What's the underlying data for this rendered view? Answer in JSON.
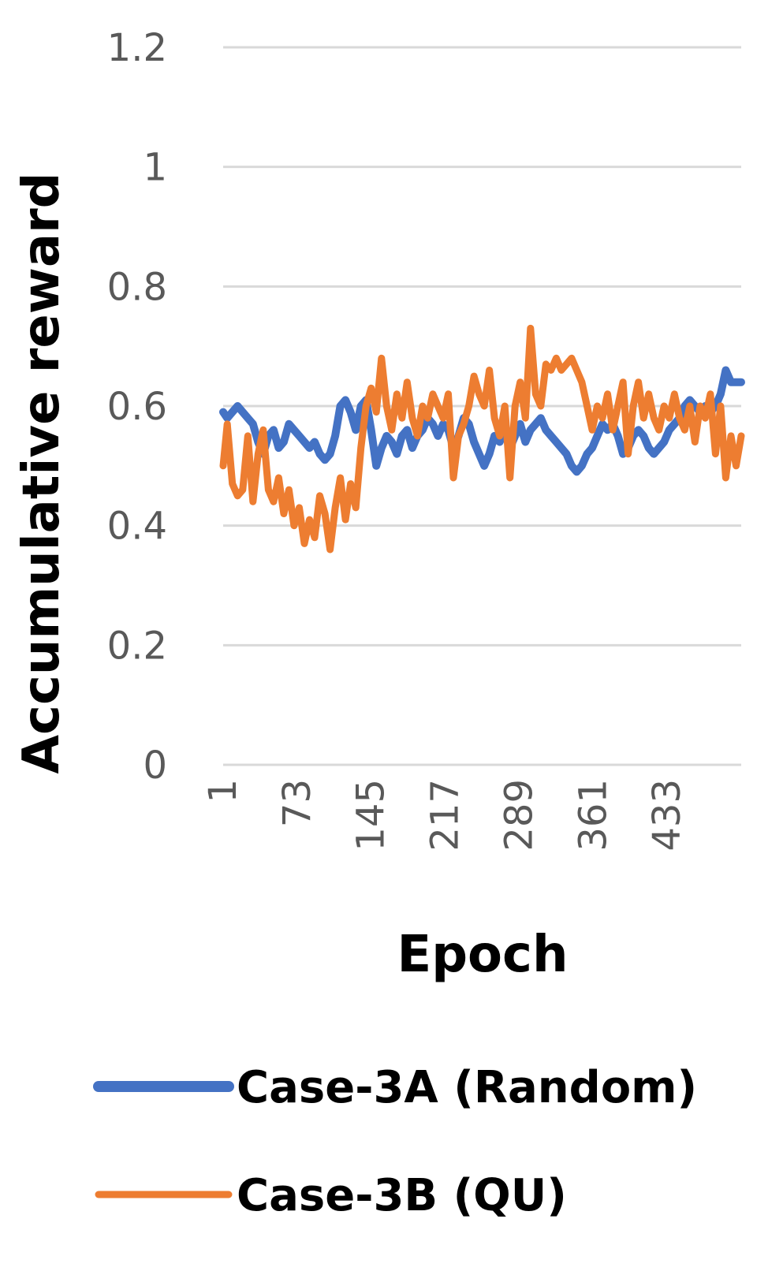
{
  "chart_data": {
    "type": "line",
    "title": "",
    "xlabel": "Epoch",
    "ylabel": "Accumulative reward",
    "ylim": [
      0,
      1.2
    ],
    "yticks": [
      "0",
      "0.2",
      "0.4",
      "0.6",
      "0.8",
      "1",
      "1.2"
    ],
    "xticks": [
      "1",
      "73",
      "145",
      "217",
      "289",
      "361",
      "433"
    ],
    "xlim": [
      1,
      505
    ],
    "grid": true,
    "legend_position": "bottom",
    "series": [
      {
        "name": "Case-3A (Random)",
        "color": "#4472c4",
        "x": [
          1,
          5,
          10,
          15,
          20,
          25,
          30,
          35,
          40,
          45,
          50,
          55,
          60,
          65,
          70,
          75,
          80,
          85,
          90,
          95,
          100,
          105,
          110,
          115,
          120,
          125,
          130,
          135,
          140,
          145,
          150,
          155,
          160,
          165,
          170,
          175,
          180,
          185,
          190,
          195,
          200,
          205,
          210,
          215,
          220,
          225,
          230,
          235,
          240,
          245,
          250,
          255,
          260,
          265,
          270,
          275,
          280,
          285,
          290,
          295,
          300,
          305,
          310,
          315,
          320,
          325,
          330,
          335,
          340,
          345,
          350,
          355,
          360,
          365,
          370,
          375,
          380,
          385,
          390,
          395,
          400,
          405,
          410,
          415,
          420,
          425,
          430,
          435,
          440,
          445,
          450,
          455,
          460,
          465,
          470,
          475,
          480,
          485,
          490,
          495,
          500,
          505
        ],
        "y": [
          0.59,
          0.58,
          0.59,
          0.6,
          0.59,
          0.58,
          0.57,
          0.54,
          0.52,
          0.55,
          0.56,
          0.53,
          0.54,
          0.57,
          0.56,
          0.55,
          0.54,
          0.53,
          0.54,
          0.52,
          0.51,
          0.52,
          0.55,
          0.6,
          0.61,
          0.59,
          0.56,
          0.6,
          0.61,
          0.56,
          0.5,
          0.53,
          0.55,
          0.54,
          0.52,
          0.55,
          0.56,
          0.53,
          0.55,
          0.56,
          0.58,
          0.57,
          0.55,
          0.57,
          0.56,
          0.53,
          0.55,
          0.58,
          0.57,
          0.54,
          0.52,
          0.5,
          0.52,
          0.55,
          0.54,
          0.56,
          0.53,
          0.55,
          0.57,
          0.54,
          0.56,
          0.57,
          0.58,
          0.56,
          0.55,
          0.54,
          0.53,
          0.52,
          0.5,
          0.49,
          0.5,
          0.52,
          0.53,
          0.55,
          0.57,
          0.56,
          0.57,
          0.55,
          0.52,
          0.53,
          0.55,
          0.56,
          0.55,
          0.53,
          0.52,
          0.53,
          0.54,
          0.56,
          0.57,
          0.58,
          0.6,
          0.61,
          0.6,
          0.59,
          0.6,
          0.59,
          0.6,
          0.62,
          0.66,
          0.64,
          0.64,
          0.64
        ]
      },
      {
        "name": "Case-3B (QU)",
        "color": "#ed7d31",
        "x": [
          1,
          5,
          10,
          15,
          20,
          25,
          30,
          35,
          40,
          45,
          50,
          55,
          60,
          65,
          70,
          75,
          80,
          85,
          90,
          95,
          100,
          105,
          110,
          115,
          120,
          125,
          130,
          135,
          140,
          145,
          150,
          155,
          160,
          165,
          170,
          175,
          180,
          185,
          190,
          195,
          200,
          205,
          210,
          215,
          220,
          225,
          230,
          235,
          240,
          245,
          250,
          255,
          260,
          265,
          270,
          275,
          280,
          285,
          290,
          295,
          300,
          305,
          310,
          315,
          320,
          325,
          330,
          335,
          340,
          345,
          350,
          355,
          360,
          365,
          370,
          375,
          380,
          385,
          390,
          395,
          400,
          405,
          410,
          415,
          420,
          425,
          430,
          435,
          440,
          445,
          450,
          455,
          460,
          465,
          470,
          475,
          480,
          485,
          490,
          495,
          500,
          505
        ],
        "y": [
          0.5,
          0.57,
          0.47,
          0.45,
          0.46,
          0.55,
          0.44,
          0.52,
          0.56,
          0.46,
          0.44,
          0.48,
          0.42,
          0.46,
          0.4,
          0.43,
          0.37,
          0.41,
          0.38,
          0.45,
          0.42,
          0.36,
          0.43,
          0.48,
          0.41,
          0.47,
          0.43,
          0.53,
          0.6,
          0.63,
          0.59,
          0.68,
          0.6,
          0.56,
          0.62,
          0.58,
          0.64,
          0.58,
          0.55,
          0.6,
          0.58,
          0.62,
          0.6,
          0.58,
          0.62,
          0.48,
          0.55,
          0.57,
          0.6,
          0.65,
          0.62,
          0.6,
          0.66,
          0.58,
          0.55,
          0.6,
          0.48,
          0.6,
          0.64,
          0.58,
          0.73,
          0.62,
          0.6,
          0.67,
          0.66,
          0.68,
          0.66,
          0.67,
          0.68,
          0.66,
          0.64,
          0.6,
          0.56,
          0.6,
          0.58,
          0.62,
          0.56,
          0.6,
          0.64,
          0.52,
          0.6,
          0.64,
          0.58,
          0.62,
          0.58,
          0.56,
          0.6,
          0.58,
          0.62,
          0.58,
          0.56,
          0.6,
          0.54,
          0.6,
          0.58,
          0.62,
          0.52,
          0.6,
          0.48,
          0.55,
          0.5,
          0.55
        ]
      }
    ]
  }
}
